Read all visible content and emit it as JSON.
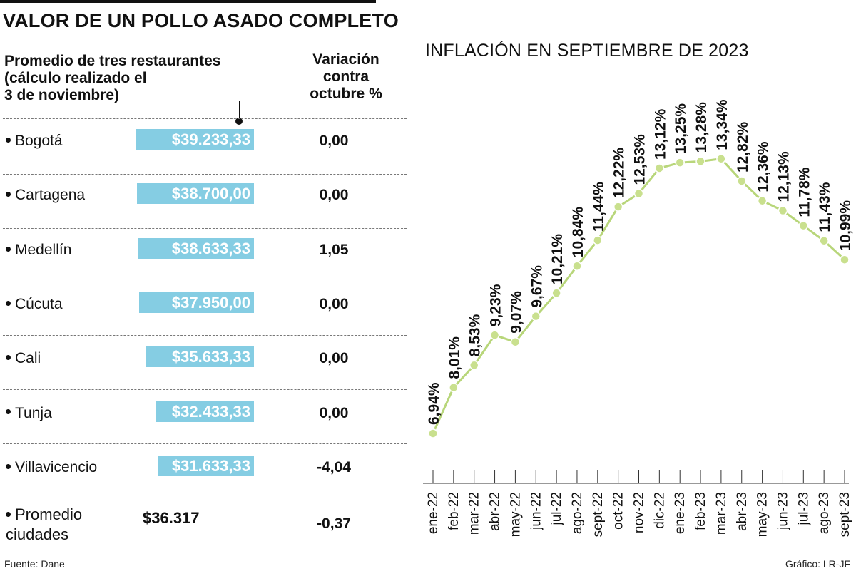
{
  "title": "VALOR DE UN POLLO ASADO COMPLETO",
  "table": {
    "header_left": [
      "Promedio de tres  restaurantes",
      "(cálculo realizado el",
      "3 de noviembre)"
    ],
    "header_right": [
      "Variación",
      "contra",
      "octubre %"
    ],
    "bar_max": 39233.33,
    "rows": [
      {
        "city": "Bogotá",
        "value_label": "$39.233,33",
        "value": 39233.33,
        "variation": "0,00"
      },
      {
        "city": "Cartagena",
        "value_label": "$38.700,00",
        "value": 38700.0,
        "variation": "0,00"
      },
      {
        "city": "Medellín",
        "value_label": "$38.633,33",
        "value": 38633.33,
        "variation": "1,05"
      },
      {
        "city": "Cúcuta",
        "value_label": "$37.950,00",
        "value": 37950.0,
        "variation": "0,00"
      },
      {
        "city": "Cali",
        "value_label": "$35.633,33",
        "value": 35633.33,
        "variation": "0,00"
      },
      {
        "city": "Tunja",
        "value_label": "$32.433,33",
        "value": 32433.33,
        "variation": "0,00"
      },
      {
        "city": "Villavicencio",
        "value_label": "$31.633,33",
        "value": 31633.33,
        "variation": "-4,04"
      }
    ],
    "average": {
      "label": [
        "Promedio",
        "ciudades"
      ],
      "value_label": "$36.317",
      "variation": "-0,37"
    }
  },
  "colors": {
    "bar": "#85cde3",
    "line": "#b8d67a",
    "marker": "#c9e08e"
  },
  "chart_data": {
    "type": "line",
    "title": "INFLACIÓN EN SEPTIEMBRE DE 2023",
    "x": [
      "ene-22",
      "feb-22",
      "mar-22",
      "abr-22",
      "may-22",
      "jun-22",
      "jul-22",
      "ago-22",
      "sept-22",
      "oct-22",
      "nov-22",
      "dic-22",
      "ene-23",
      "feb-23",
      "mar-23",
      "abr-23",
      "may-23",
      "jun-23",
      "jul-23",
      "ago-23",
      "sept-23"
    ],
    "values": [
      6.94,
      8.01,
      8.53,
      9.23,
      9.07,
      9.67,
      10.21,
      10.84,
      11.44,
      12.22,
      12.53,
      13.12,
      13.25,
      13.28,
      13.34,
      12.82,
      12.36,
      12.13,
      11.78,
      11.43,
      10.99
    ],
    "labels": [
      "6,94%",
      "8,01%",
      "8,53%",
      "9,23%",
      "9,07%",
      "9,67%",
      "10,21%",
      "10,84%",
      "11,44%",
      "12,22%",
      "12,53%",
      "13,12%",
      "13,25%",
      "13,28%",
      "13,34%",
      "12,82%",
      "12,36%",
      "12,13%",
      "11,78%",
      "11,43%",
      "10,99%"
    ],
    "grid": false,
    "legend": "none"
  },
  "footer": {
    "source": "Fuente: Dane",
    "credit": "Gráfico: LR-JF"
  }
}
